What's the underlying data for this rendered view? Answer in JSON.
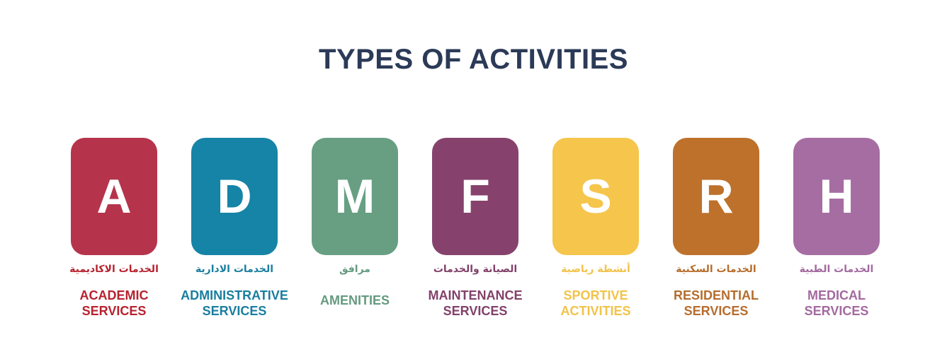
{
  "title": "TYPES OF ACTIVITIES",
  "items": [
    {
      "letter": "A",
      "arabic": "الخدمات الاكاديمية",
      "line1": "ACADEMIC",
      "line2": "SERVICES",
      "tile_color": "#b5344b",
      "text_color": "#b7222f",
      "icon": "academic-services"
    },
    {
      "letter": "D",
      "arabic": "الخدمات الادارية",
      "line1": "ADMINISTRATIVE",
      "line2": "SERVICES",
      "tile_color": "#1584a6",
      "text_color": "#1a7e9f",
      "icon": "administrative-services"
    },
    {
      "letter": "M",
      "arabic": "مرافق",
      "line1": "AMENITIES",
      "line2": "",
      "tile_color": "#689f83",
      "text_color": "#669a80",
      "icon": "amenities"
    },
    {
      "letter": "F",
      "arabic": "الصيانة والخدمات",
      "line1": "MAINTENANCE",
      "line2": "SERVICES",
      "tile_color": "#86426d",
      "text_color": "#82416a",
      "icon": "maintenance-services"
    },
    {
      "letter": "S",
      "arabic": "أنشطة رياضية",
      "line1": "SPORTIVE",
      "line2": "ACTIVITIES",
      "tile_color": "#f5c54c",
      "text_color": "#f1c34b",
      "icon": "sportive-activities"
    },
    {
      "letter": "R",
      "arabic": "الخدمات السكنية",
      "line1": "RESIDENTIAL",
      "line2": "SERVICES",
      "tile_color": "#bd712b",
      "text_color": "#b56d2d",
      "icon": "residential-services"
    },
    {
      "letter": "H",
      "arabic": "الخدمات الطبية",
      "line1": "MEDICAL",
      "line2": "SERVICES",
      "tile_color": "#a66da3",
      "text_color": "#a3699f",
      "icon": "medical-services"
    }
  ]
}
